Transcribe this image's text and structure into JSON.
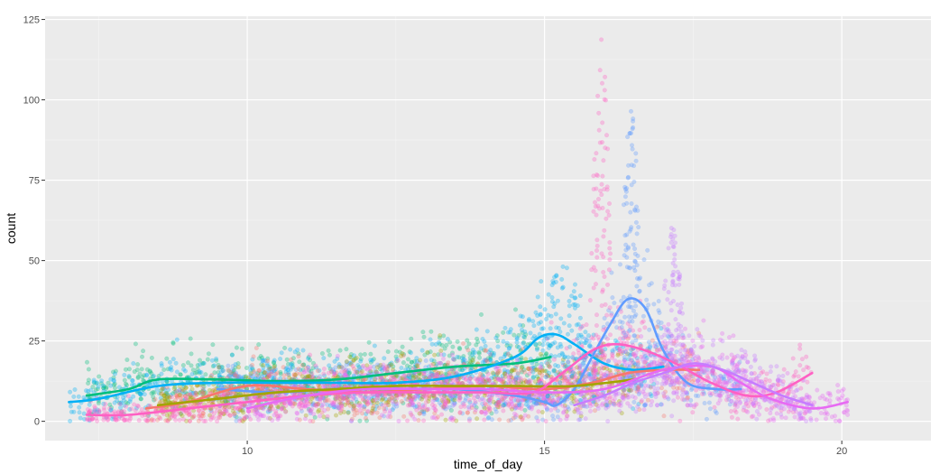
{
  "chart_data": {
    "type": "scatter",
    "xlabel": "time_of_day",
    "ylabel": "count",
    "xlim": [
      6.6,
      21.5
    ],
    "ylim": [
      -6,
      126
    ],
    "x_ticks": [
      10,
      15,
      20
    ],
    "x_tick_labels": [
      "10",
      "15",
      "20"
    ],
    "y_ticks": [
      0,
      25,
      50,
      75,
      100,
      125
    ],
    "y_tick_labels": [
      "0",
      "25",
      "50",
      "75",
      "100",
      "125"
    ],
    "grid": true,
    "legend": "none",
    "colors": {
      "panel_background": "#EBEBEB",
      "grid_major": "#FFFFFF",
      "series": [
        "#F8766D",
        "#A3A500",
        "#00BF7D",
        "#00B0F6",
        "#619CFF",
        "#E76BF3",
        "#FF61C3",
        "#C77CFF"
      ]
    },
    "series": [
      {
        "color": "#00BF7D",
        "smooth": [
          [
            7.3,
            8
          ],
          [
            8,
            10
          ],
          [
            8.5,
            13
          ],
          [
            9.5,
            13
          ],
          [
            10.5,
            12.5
          ],
          [
            11.5,
            13
          ],
          [
            12.5,
            15
          ],
          [
            13.5,
            17
          ],
          [
            14.5,
            18
          ],
          [
            15.1,
            20
          ]
        ]
      },
      {
        "color": "#00B0F6",
        "smooth": [
          [
            7.0,
            6
          ],
          [
            7.5,
            7
          ],
          [
            8.5,
            11
          ],
          [
            9.5,
            12
          ],
          [
            10.5,
            12
          ],
          [
            11.5,
            12
          ],
          [
            12.5,
            12
          ],
          [
            13.5,
            14
          ],
          [
            14.5,
            20
          ],
          [
            14.9,
            26
          ],
          [
            15.2,
            27
          ],
          [
            15.5,
            24
          ],
          [
            16,
            18
          ],
          [
            16.5,
            16
          ],
          [
            17,
            17
          ]
        ]
      },
      {
        "color": "#619CFF",
        "smooth": [
          [
            9.5,
            10
          ],
          [
            10.5,
            9
          ],
          [
            11.5,
            10
          ],
          [
            12.5,
            10
          ],
          [
            13.5,
            10
          ],
          [
            14.5,
            8
          ],
          [
            15,
            6
          ],
          [
            15.2,
            5
          ],
          [
            15.5,
            10
          ],
          [
            15.8,
            20
          ],
          [
            16.1,
            30
          ],
          [
            16.4,
            38
          ],
          [
            16.7,
            35
          ],
          [
            17.0,
            22
          ],
          [
            17.4,
            12
          ],
          [
            17.9,
            10
          ],
          [
            18.3,
            10
          ]
        ]
      },
      {
        "color": "#F8766D",
        "smooth": [
          [
            8.3,
            4
          ],
          [
            9,
            6
          ],
          [
            10,
            11
          ],
          [
            11,
            10
          ],
          [
            12,
            9
          ],
          [
            13,
            10
          ],
          [
            14,
            11
          ],
          [
            15,
            10
          ],
          [
            15.8,
            12
          ],
          [
            16.4,
            15
          ],
          [
            17,
            16
          ],
          [
            17.6,
            16
          ]
        ]
      },
      {
        "color": "#A3A500",
        "smooth": [
          [
            8.5,
            5
          ],
          [
            9.5,
            7
          ],
          [
            10.5,
            9
          ],
          [
            11.5,
            10
          ],
          [
            12.5,
            11
          ],
          [
            13.5,
            11
          ],
          [
            14.5,
            11
          ],
          [
            15.5,
            11
          ],
          [
            16.5,
            13
          ]
        ]
      },
      {
        "color": "#FF61C3",
        "smooth": [
          [
            7.3,
            2
          ],
          [
            8,
            2
          ],
          [
            9,
            4
          ],
          [
            10,
            6
          ],
          [
            11,
            8
          ],
          [
            12,
            9
          ],
          [
            13,
            9
          ],
          [
            14,
            9
          ],
          [
            14.8,
            9
          ],
          [
            15.3,
            15
          ],
          [
            15.8,
            22
          ],
          [
            16.2,
            24
          ],
          [
            16.7,
            22
          ],
          [
            17.2,
            18
          ],
          [
            17.8,
            12
          ],
          [
            18.4,
            8
          ],
          [
            18.9,
            9
          ],
          [
            19.5,
            15
          ]
        ]
      },
      {
        "color": "#E76BF3",
        "smooth": [
          [
            10,
            4
          ],
          [
            11,
            8
          ],
          [
            12,
            10
          ],
          [
            13,
            10
          ],
          [
            14,
            10
          ],
          [
            15,
            9
          ],
          [
            16,
            10
          ],
          [
            17,
            16
          ],
          [
            17.8,
            17
          ],
          [
            18.3,
            12
          ],
          [
            18.8,
            7
          ],
          [
            19.5,
            4
          ],
          [
            20.1,
            6
          ]
        ]
      },
      {
        "color": "#C77CFF",
        "smooth": [
          [
            15.5,
            5
          ],
          [
            16,
            8
          ],
          [
            16.5,
            12
          ],
          [
            17,
            15
          ],
          [
            17.5,
            18
          ],
          [
            18,
            16
          ],
          [
            18.5,
            12
          ],
          [
            19,
            8
          ],
          [
            19.5,
            5
          ]
        ]
      }
    ],
    "peaks": [
      {
        "color": "#FF61C3",
        "x": 15.95,
        "spread": 0.1,
        "ymax": 119
      },
      {
        "color": "#619CFF",
        "x": 16.45,
        "spread": 0.1,
        "ymax": 99
      },
      {
        "color": "#C77CFF",
        "x": 17.15,
        "spread": 0.12,
        "ymax": 61
      },
      {
        "color": "#00B0F6",
        "x": 15.3,
        "spread": 0.3,
        "ymax": 49
      }
    ]
  }
}
